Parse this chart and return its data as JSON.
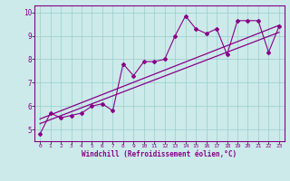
{
  "title": "",
  "xlabel": "Windchill (Refroidissement éolien,°C)",
  "xlim": [
    -0.5,
    23.5
  ],
  "ylim": [
    4.5,
    10.3
  ],
  "xticks": [
    0,
    1,
    2,
    3,
    4,
    5,
    6,
    7,
    8,
    9,
    10,
    11,
    12,
    13,
    14,
    15,
    16,
    17,
    18,
    19,
    20,
    21,
    22,
    23
  ],
  "yticks": [
    5,
    6,
    7,
    8,
    9,
    10
  ],
  "bg_color": "#cceaea",
  "line_color": "#880088",
  "grid_color": "#99cccc",
  "scatter_x": [
    0,
    1,
    2,
    3,
    4,
    5,
    6,
    7,
    8,
    9,
    10,
    11,
    12,
    13,
    14,
    15,
    16,
    17,
    18,
    19,
    20,
    21,
    22,
    23
  ],
  "scatter_y": [
    4.8,
    5.7,
    5.5,
    5.6,
    5.7,
    6.0,
    6.1,
    5.8,
    7.8,
    7.3,
    7.9,
    7.9,
    8.0,
    9.0,
    9.85,
    9.3,
    9.1,
    9.3,
    8.2,
    9.65,
    9.65,
    9.65,
    8.3,
    9.4
  ],
  "reg_line1_x": [
    0,
    23
  ],
  "reg_line1_y": [
    5.25,
    9.15
  ],
  "reg_line2_x": [
    0,
    23
  ],
  "reg_line2_y": [
    5.45,
    9.45
  ]
}
